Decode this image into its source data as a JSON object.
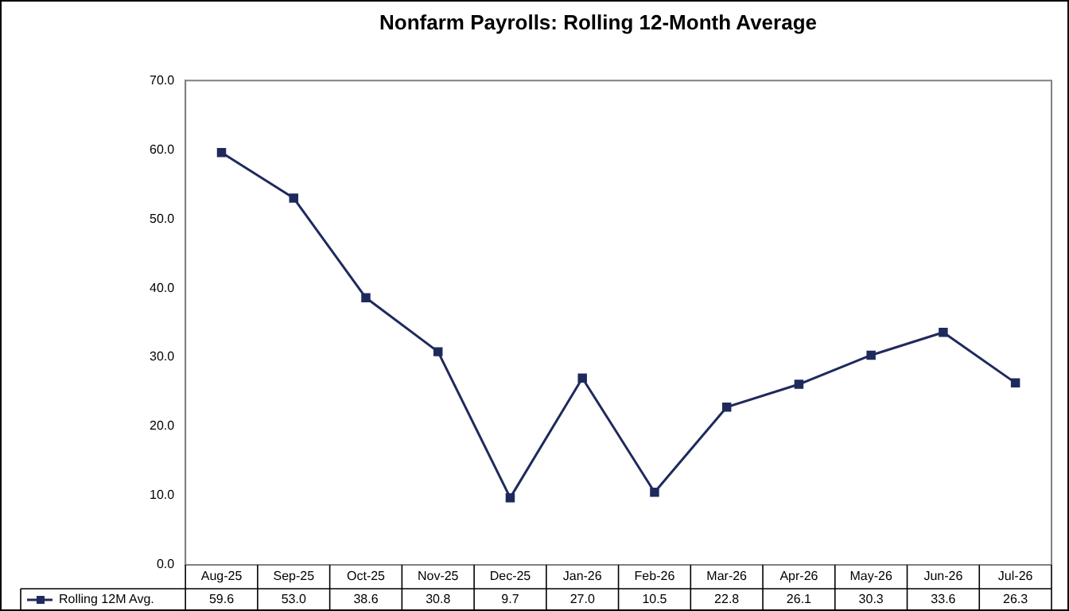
{
  "chart_data": {
    "type": "line",
    "title": "Nonfarm Payrolls: Rolling 12-Month Average",
    "categories": [
      "Aug-25",
      "Sep-25",
      "Oct-25",
      "Nov-25",
      "Dec-25",
      "Jan-26",
      "Feb-26",
      "Mar-26",
      "Apr-26",
      "May-26",
      "Jun-26",
      "Jul-26"
    ],
    "series": [
      {
        "name": "Rolling 12M Avg.",
        "color": "#1f2a5c",
        "values": [
          59.6,
          53.0,
          38.6,
          30.8,
          9.7,
          27.0,
          10.5,
          22.8,
          26.1,
          30.3,
          33.6,
          26.3
        ],
        "value_labels": [
          "59.6",
          "53.0",
          "38.6",
          "30.8",
          "9.7",
          "27.0",
          "10.5",
          "22.8",
          "26.1",
          "30.3",
          "33.6",
          "26.3"
        ]
      }
    ],
    "ylim": [
      0,
      70
    ],
    "yticks": [
      {
        "value": 0,
        "label": "0.0"
      },
      {
        "value": 10,
        "label": "10.0"
      },
      {
        "value": 20,
        "label": "20.0"
      },
      {
        "value": 30,
        "label": "30.0"
      },
      {
        "value": 40,
        "label": "40.0"
      },
      {
        "value": 50,
        "label": "50.0"
      },
      {
        "value": 60,
        "label": "60.0"
      },
      {
        "value": 70,
        "label": "70.0"
      }
    ],
    "grid": false,
    "legend": "bottom",
    "marker": "square",
    "line_style": "solid"
  }
}
